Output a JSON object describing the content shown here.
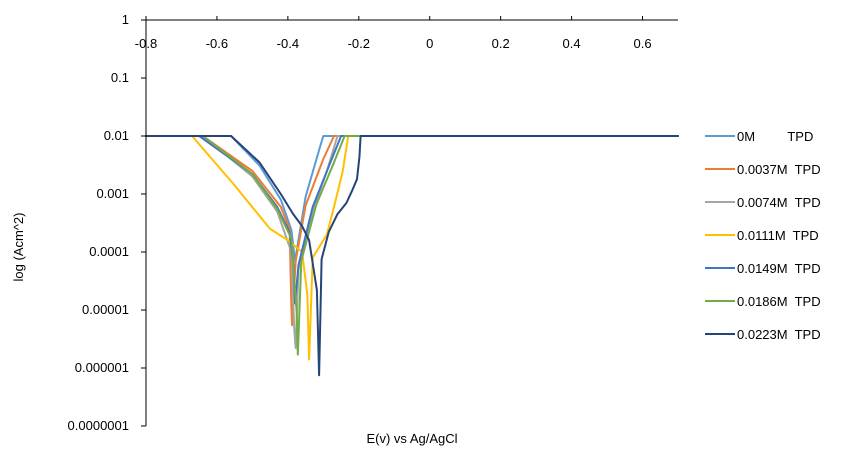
{
  "chart_data": {
    "type": "line",
    "title": "",
    "xlabel": "E(v) vs Ag/AgCl",
    "ylabel": "log (Acm^2)",
    "xlim": [
      -0.8,
      0.7
    ],
    "ylim": [
      1e-07,
      1
    ],
    "y_scale": "log",
    "grid": false,
    "legend_position": "right",
    "x_ticks": [
      "-0.8",
      "-0.6",
      "-0.4",
      "-0.2",
      "0",
      "0.2",
      "0.4",
      "0.6"
    ],
    "x_tick_values": [
      -0.8,
      -0.6,
      -0.4,
      -0.2,
      0,
      0.2,
      0.4,
      0.6
    ],
    "y_ticks": [
      "1",
      "0.1",
      "0.01",
      "0.001",
      "0.0001",
      "0.00001",
      "0.000001",
      "0.0000001"
    ],
    "y_tick_values": [
      1,
      0.1,
      0.01,
      0.001,
      0.0001,
      1e-05,
      1e-06,
      1e-07
    ],
    "series": [
      {
        "name": "0M         TPD",
        "color": "#5B9BD5",
        "x": [
          -0.8,
          -0.6,
          -0.56,
          -0.48,
          -0.42,
          -0.39,
          -0.38,
          -0.35,
          -0.31,
          -0.3,
          0.7
        ],
        "y": [
          0.01,
          0.01,
          0.01,
          0.0031,
          0.0008,
          0.00024,
          7e-05,
          0.0009,
          0.0063,
          0.01,
          0.01
        ]
      },
      {
        "name": "0.0037M  TPD",
        "color": "#ED7D31",
        "x": [
          -0.8,
          -0.64,
          -0.5,
          -0.42,
          -0.395,
          -0.39,
          -0.388,
          -0.378,
          -0.35,
          -0.3,
          -0.27,
          0.7
        ],
        "y": [
          0.01,
          0.01,
          0.0025,
          0.0006,
          0.00025,
          1.1e-05,
          5.5e-06,
          7e-05,
          0.00063,
          0.004,
          0.01,
          0.01
        ]
      },
      {
        "name": "0.0074M  TPD",
        "color": "#A5A5A5",
        "x": [
          -0.8,
          -0.64,
          -0.5,
          -0.43,
          -0.39,
          -0.382,
          -0.378,
          -0.37,
          -0.33,
          -0.29,
          -0.26,
          0.7
        ],
        "y": [
          0.01,
          0.01,
          0.002,
          0.0005,
          0.0001,
          4.5e-06,
          2.2e-06,
          5e-05,
          0.0005,
          0.0025,
          0.01,
          0.01
        ]
      },
      {
        "name": "0.0111M  TPD",
        "color": "#FFC000",
        "x": [
          -0.8,
          -0.67,
          -0.55,
          -0.45,
          -0.4,
          -0.36,
          -0.345,
          -0.34,
          -0.33,
          -0.29,
          -0.27,
          -0.245,
          -0.23,
          0.7
        ],
        "y": [
          0.01,
          0.01,
          0.0014,
          0.00025,
          0.00016,
          0.0001,
          1.8e-05,
          1.4e-06,
          8e-05,
          0.0002,
          0.0006,
          0.0025,
          0.01,
          0.01
        ]
      },
      {
        "name": "0.0149M  TPD",
        "color": "#4472C4",
        "x": [
          -0.8,
          -0.65,
          -0.5,
          -0.43,
          -0.395,
          -0.384,
          -0.38,
          -0.37,
          -0.33,
          -0.28,
          -0.25,
          0.7
        ],
        "y": [
          0.01,
          0.01,
          0.0022,
          0.0006,
          0.00022,
          6e-05,
          1.3e-05,
          6e-05,
          0.0006,
          0.0035,
          0.01,
          0.01
        ]
      },
      {
        "name": "0.0186M  TPD",
        "color": "#70AD47",
        "x": [
          -0.8,
          -0.64,
          -0.5,
          -0.43,
          -0.39,
          -0.375,
          -0.372,
          -0.362,
          -0.32,
          -0.27,
          -0.24,
          0.7
        ],
        "y": [
          0.01,
          0.01,
          0.0022,
          0.00055,
          0.00017,
          9e-06,
          1.7e-06,
          7e-05,
          0.00065,
          0.0035,
          0.01,
          0.01
        ]
      },
      {
        "name": "0.0223M  TPD",
        "color": "#264478",
        "x": [
          -0.8,
          -0.56,
          -0.48,
          -0.42,
          -0.385,
          -0.36,
          -0.34,
          -0.318,
          -0.312,
          -0.305,
          -0.285,
          -0.26,
          -0.235,
          -0.22,
          -0.205,
          -0.198,
          -0.195,
          0.7
        ],
        "y": [
          0.01,
          0.01,
          0.0035,
          0.001,
          0.00045,
          0.00028,
          0.00016,
          2.2e-05,
          7.5e-07,
          7.5e-05,
          0.00022,
          0.00045,
          0.0007,
          0.0011,
          0.0018,
          0.0045,
          0.01,
          0.01
        ]
      }
    ]
  }
}
